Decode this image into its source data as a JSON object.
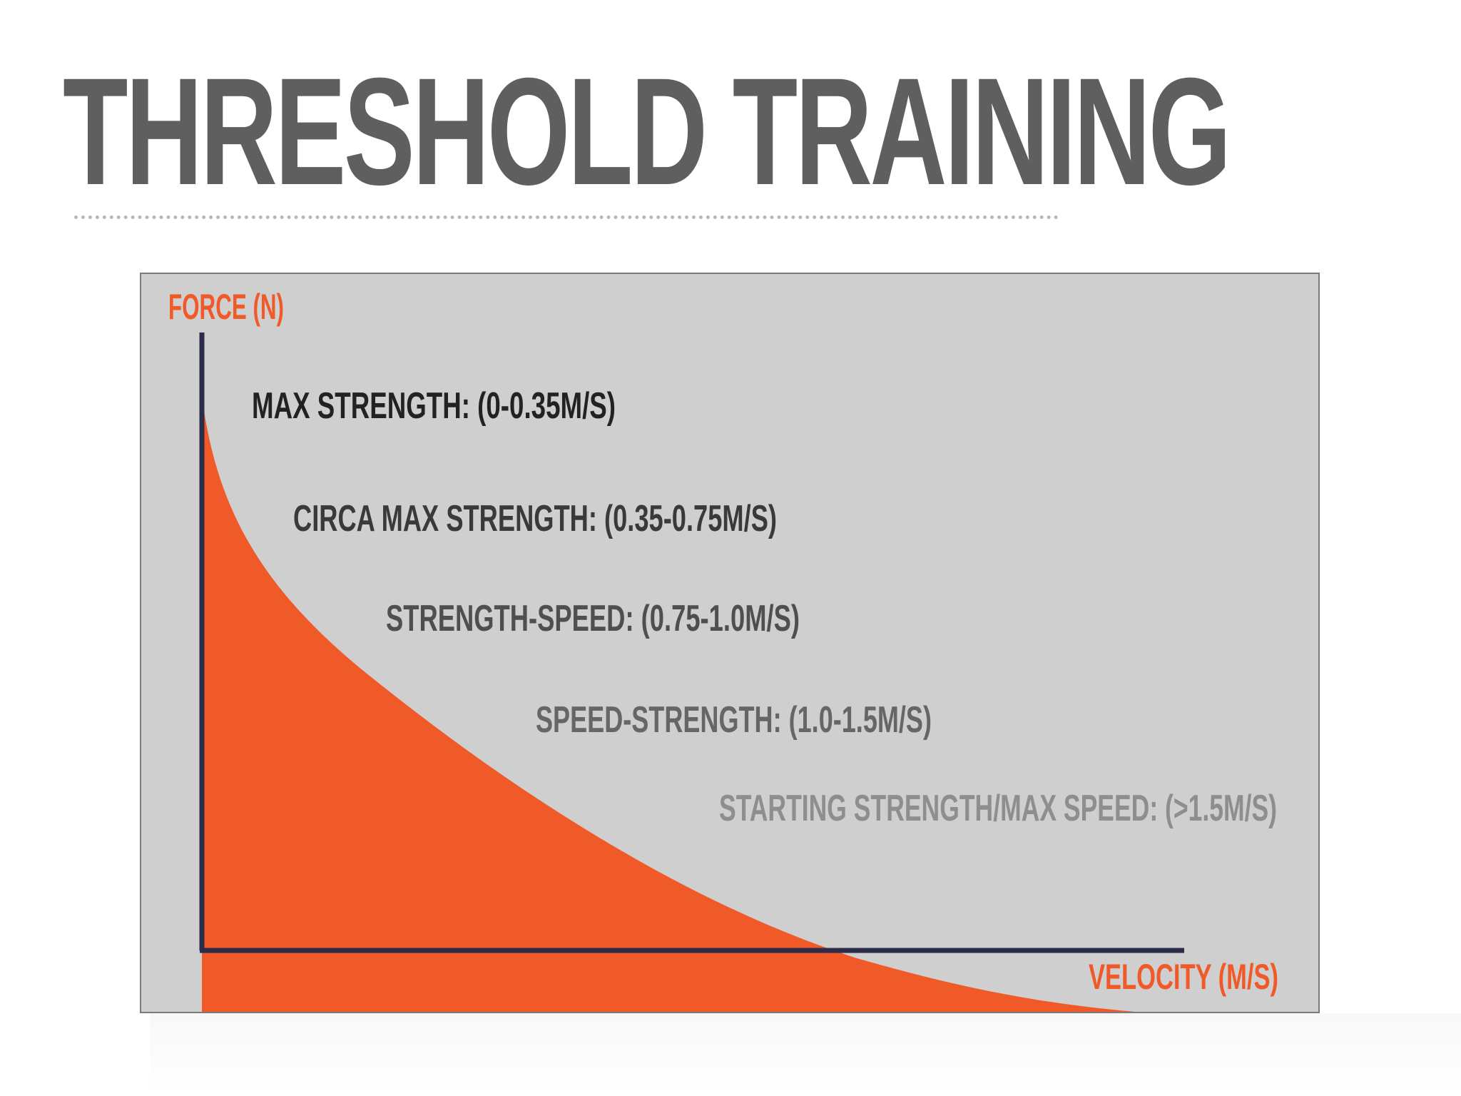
{
  "slide": {
    "title": "THRESHOLD TRAINING"
  },
  "diagram": {
    "axes": {
      "y_label": "FORCE (N)",
      "x_label": "VELOCITY (M/S)"
    },
    "zones": [
      {
        "label": "MAX STRENGTH: (0-0.35M/S)",
        "color": "#222222"
      },
      {
        "label": "CIRCA MAX STRENGTH: (0.35-0.75M/S)",
        "color": "#3a3a3a"
      },
      {
        "label": "STRENGTH-SPEED: (0.75-1.0M/S)",
        "color": "#4f4f4f"
      },
      {
        "label": "SPEED-STRENGTH: (1.0-1.5M/S)",
        "color": "#666666"
      },
      {
        "label": "STARTING STRENGTH/MAX SPEED: (>1.5M/S)",
        "color": "#8e8e8e"
      }
    ],
    "colors": {
      "curve_fill": "#f05a28",
      "axis_line": "#2b2b4a",
      "axis_label": "#f05a28",
      "background": "#cfcfd0"
    }
  }
}
